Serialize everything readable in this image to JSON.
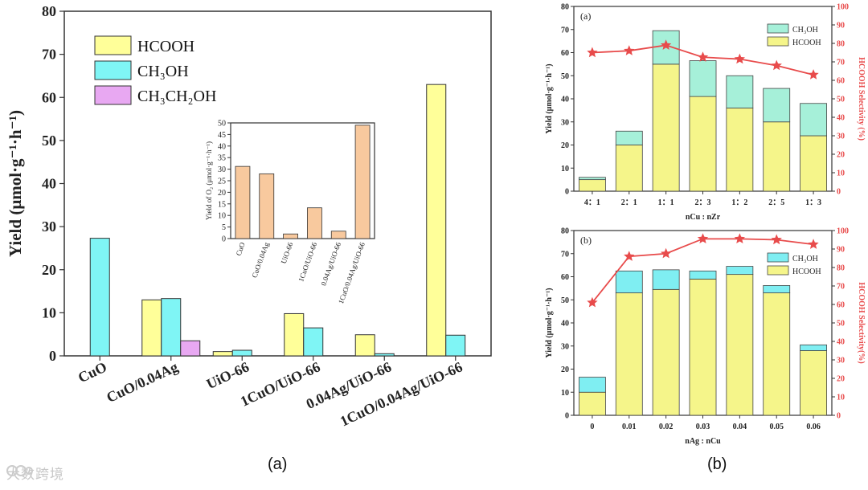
{
  "colors": {
    "hcooh": "#ffff99",
    "ch3oh": "#7ff5f5",
    "ch3ch2oh": "#e8a8f2",
    "o2": "#f8c99e",
    "ch3oh_top": "#a6f0d9",
    "hcooh_top": "#f5f58a",
    "ch3oh_b": "#7feef2",
    "selectivity": "#e84b4b",
    "axis": "#333333"
  },
  "captions": {
    "a": "(a)",
    "b": "(b)"
  },
  "watermark": "大数跨境",
  "chart_data": [
    {
      "id": "main",
      "type": "bar",
      "ylabel": "Yield (μmol·g⁻¹·h⁻¹)",
      "ylim": [
        0,
        80
      ],
      "yticks": [
        "0",
        "10",
        "20",
        "30",
        "40",
        "50",
        "60",
        "70",
        "80"
      ],
      "categories": [
        "CuO",
        "CuO/0.04Ag",
        "UiO-66",
        "1CuO/UiO-66",
        "0.04Ag/UiO-66",
        "1CuO/0.04Ag/UiO-66"
      ],
      "series": [
        {
          "name": "HCOOH",
          "legend": "HCOOH",
          "color_key": "hcooh",
          "values": [
            0,
            13,
            1,
            9.8,
            4.9,
            63
          ]
        },
        {
          "name": "CH3OH",
          "legend": "CH₃OH",
          "color_key": "ch3oh",
          "values": [
            27.3,
            13.3,
            1.3,
            6.5,
            0.5,
            4.8
          ]
        },
        {
          "name": "CH3CH2OH",
          "legend": "CH₃CH₂OH",
          "color_key": "ch3ch2oh",
          "values": [
            0,
            3.5,
            0,
            0,
            0,
            0
          ]
        }
      ]
    },
    {
      "id": "inset",
      "type": "bar",
      "ylabel": "Yield of O₂ (μmol·g⁻¹·h⁻¹)",
      "ylim": [
        0,
        50
      ],
      "yticks": [
        "0",
        "5",
        "10",
        "15",
        "20",
        "25",
        "30",
        "35",
        "40",
        "45",
        "50"
      ],
      "categories": [
        "CuO",
        "CuO/0.04Ag",
        "UiO-66",
        "1CuO/UiO-66",
        "0.04Ag/UiO-66",
        "1CuO/0.04Ag/UiO-66"
      ],
      "values": [
        31.2,
        28,
        2,
        13.3,
        3.2,
        49
      ]
    },
    {
      "id": "b_top",
      "type": "stacked-bar+line",
      "panel_label": "(a)",
      "xlabel": "nCu : nZr",
      "ylabel": "Yield (μmol·g⁻¹·h⁻¹)",
      "y2label": "HCOOH Selectivity (%)",
      "ylim": [
        0,
        80
      ],
      "y2lim": [
        0,
        100
      ],
      "yticks": [
        "0",
        "10",
        "20",
        "30",
        "40",
        "50",
        "60",
        "70",
        "80"
      ],
      "y2ticks": [
        "0",
        "10",
        "20",
        "30",
        "40",
        "50",
        "60",
        "70",
        "80",
        "90",
        "100"
      ],
      "categories": [
        "4：1",
        "2：1",
        "1：1",
        "2：3",
        "1：2",
        "2：5",
        "1：3"
      ],
      "hcooh": [
        5,
        20,
        55,
        41,
        36,
        30,
        24
      ],
      "ch3oh": [
        1,
        6,
        14.5,
        15.5,
        14,
        14.5,
        14
      ],
      "selectivity": [
        75,
        76,
        79,
        72.5,
        71.5,
        68,
        63
      ],
      "legend": [
        "CH₃OH",
        "HCOOH"
      ]
    },
    {
      "id": "b_bottom",
      "type": "stacked-bar+line",
      "panel_label": "(b)",
      "xlabel": "nAg : nCu",
      "ylabel": "Yield (μmol·g⁻¹·h⁻¹)",
      "y2label": "HCOOH Selectivity(%)",
      "ylim": [
        0,
        80
      ],
      "y2lim": [
        0,
        100
      ],
      "yticks": [
        "0",
        "10",
        "20",
        "30",
        "40",
        "50",
        "60",
        "70",
        "80"
      ],
      "y2ticks": [
        "0",
        "10",
        "20",
        "30",
        "40",
        "50",
        "60",
        "70",
        "80",
        "90",
        "100"
      ],
      "categories": [
        "0",
        "0.01",
        "0.02",
        "0.03",
        "0.04",
        "0.05",
        "0.06"
      ],
      "hcooh": [
        10,
        53,
        54.5,
        59,
        61,
        53,
        28
      ],
      "ch3oh": [
        6.5,
        9.5,
        8.5,
        3.5,
        3.5,
        3.2,
        2.5
      ],
      "selectivity": [
        61,
        86,
        87.5,
        95.5,
        95.5,
        95,
        92.5
      ],
      "legend": [
        "CH₃OH",
        "HCOOH"
      ]
    }
  ]
}
